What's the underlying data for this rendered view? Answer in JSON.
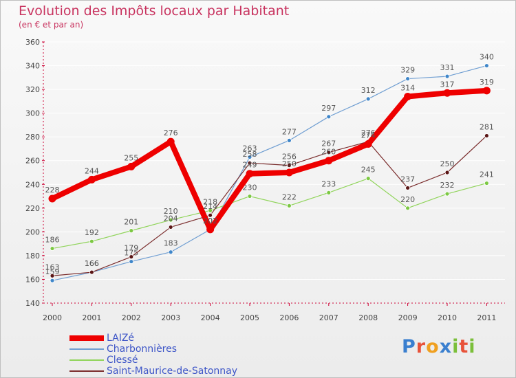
{
  "title": "Evolution des Impôts locaux par Habitant",
  "subtitle": "(en € et par an)",
  "brand": {
    "letters": [
      "P",
      "r",
      "o",
      "x",
      "i",
      "t",
      "i"
    ],
    "colors": [
      "#3a7fcf",
      "#e8533a",
      "#f0a020",
      "#3a7fcf",
      "#7bbf3a",
      "#e8533a",
      "#7bbf3a"
    ]
  },
  "colors": {
    "laize": "#ee0000",
    "charbonnieres": "#6f9ed2",
    "clesse": "#90d45a",
    "saint_maurice": "#7a2c2c",
    "axis": "#cc0033",
    "tick_text": "#444444",
    "label_text": "#555555",
    "legend_text": "#3d55c7"
  },
  "chart_data": {
    "type": "line",
    "title": "Evolution des Impôts locaux par Habitant",
    "subtitle": "(en € et par an)",
    "xlabel": "",
    "ylabel": "",
    "ylim": [
      140,
      360
    ],
    "yticks": [
      140,
      160,
      180,
      200,
      220,
      240,
      260,
      280,
      300,
      320,
      340,
      360
    ],
    "categories": [
      "2000",
      "2001",
      "2002",
      "2003",
      "2004",
      "2005",
      "2006",
      "2007",
      "2008",
      "2009",
      "2010",
      "2011"
    ],
    "legend_position": "bottom-left",
    "series": [
      {
        "name": "LAIZé",
        "key": "laize",
        "values": [
          228,
          244,
          255,
          276,
          202,
          249,
          250,
          260,
          274,
          314,
          317,
          319
        ]
      },
      {
        "name": "Charbonnières",
        "key": "charbonnieres",
        "values": [
          159,
          166,
          175,
          183,
          202,
          263,
          277,
          297,
          312,
          329,
          331,
          340
        ]
      },
      {
        "name": "Clessé",
        "key": "clesse",
        "values": [
          186,
          192,
          201,
          210,
          218,
          230,
          222,
          233,
          245,
          220,
          232,
          241
        ]
      },
      {
        "name": "Saint-Maurice-de-Satonnay",
        "key": "saint_maurice",
        "values": [
          163,
          166,
          179,
          204,
          214,
          258,
          256,
          267,
          276,
          237,
          250,
          281
        ]
      }
    ]
  }
}
